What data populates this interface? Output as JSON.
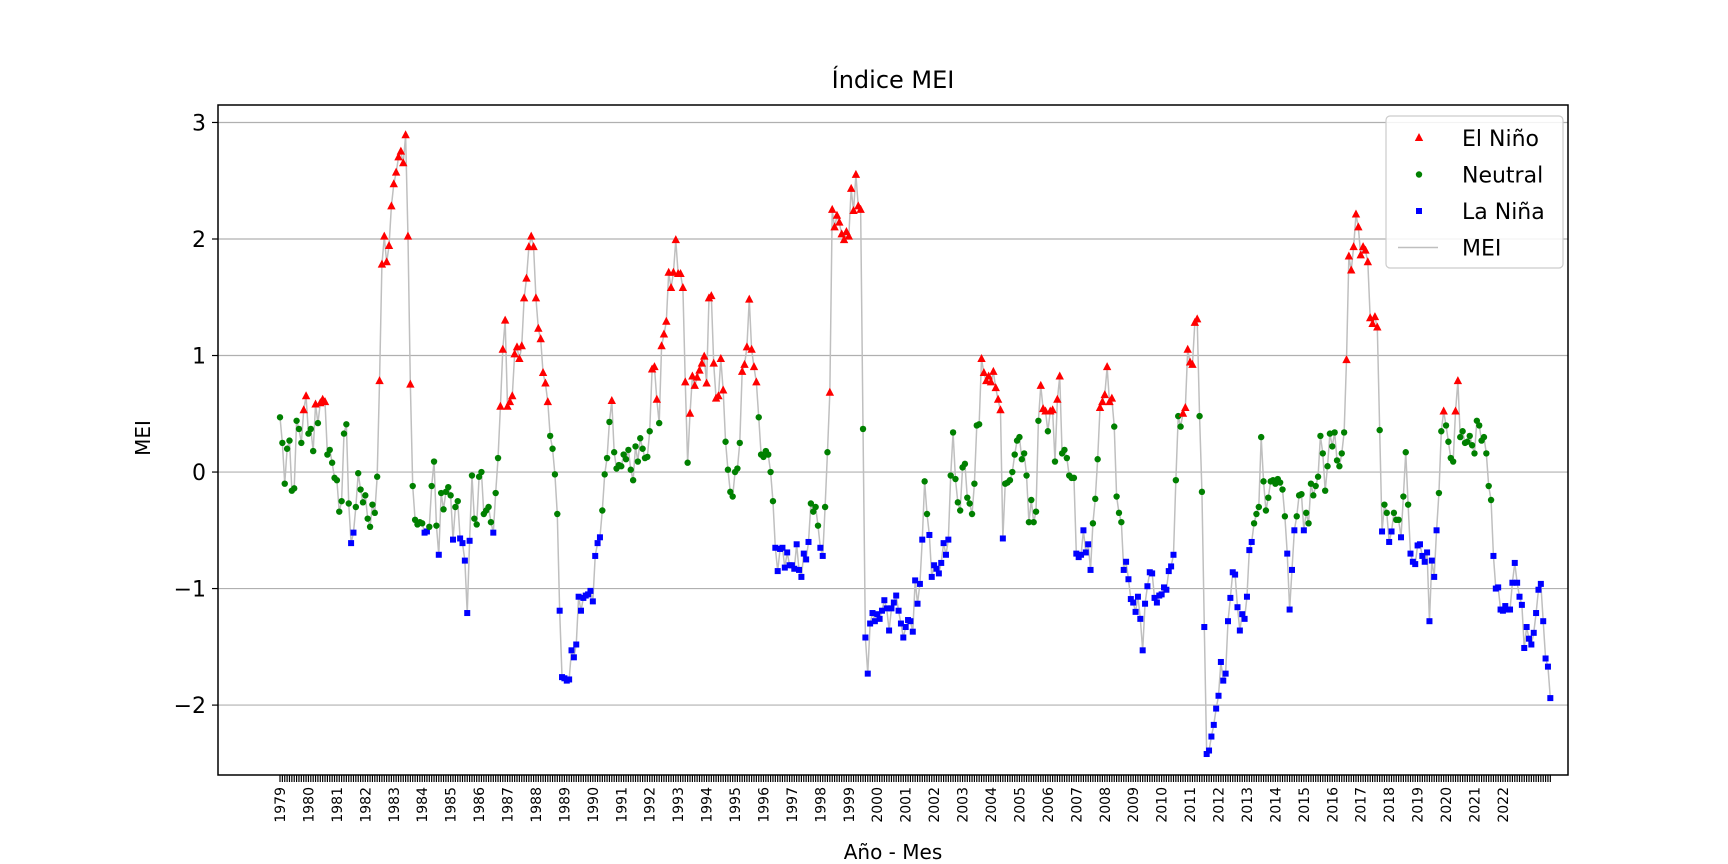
{
  "chart_data": {
    "type": "scatter",
    "title": "Índice MEI",
    "xlabel": "Año - Mes",
    "ylabel": "MEI",
    "ylim": [
      -2.6,
      3.15
    ],
    "yticks": [
      3,
      2,
      1,
      0,
      -1,
      -2
    ],
    "ytick_labels": [
      "3",
      "2",
      "1",
      "0",
      "−1",
      "−2"
    ],
    "x_years": [
      "1979",
      "1980",
      "1981",
      "1982",
      "1983",
      "1984",
      "1985",
      "1986",
      "1987",
      "1988",
      "1989",
      "1990",
      "1991",
      "1992",
      "1993",
      "1994",
      "1995",
      "1996",
      "1997",
      "1998",
      "1999",
      "2000",
      "2001",
      "2002",
      "2003",
      "2004",
      "2005",
      "2006",
      "2007",
      "2008",
      "2009",
      "2010",
      "2011",
      "2012",
      "2013",
      "2014",
      "2015",
      "2016",
      "2017",
      "2018",
      "2019",
      "2020",
      "2021",
      "2022"
    ],
    "grid": "horizontal",
    "legend_position": "top-right",
    "colors": {
      "el_nino": "#ff0000",
      "neutral": "#008000",
      "la_nina": "#0000ff",
      "line": "#bfbfbf",
      "grid": "#b0b0b0"
    },
    "series": [
      {
        "name": "El Niño",
        "marker": "triangle",
        "color": "#ff0000"
      },
      {
        "name": "Neutral",
        "marker": "circle",
        "color": "#008000"
      },
      {
        "name": "La Niña",
        "marker": "square",
        "color": "#0000ff"
      },
      {
        "name": "MEI",
        "marker": "line",
        "color": "#bfbfbf"
      }
    ],
    "start": "1979-01",
    "monthly_values": [
      0.47,
      0.25,
      -0.1,
      0.2,
      0.27,
      -0.16,
      -0.14,
      0.44,
      0.37,
      0.25,
      0.53,
      0.65,
      0.33,
      0.37,
      0.18,
      0.58,
      0.42,
      0.59,
      0.62,
      0.6,
      0.15,
      0.19,
      0.08,
      -0.05,
      -0.07,
      -0.34,
      -0.25,
      0.33,
      0.41,
      -0.27,
      -0.61,
      -0.52,
      -0.3,
      -0.01,
      -0.15,
      -0.26,
      -0.2,
      -0.4,
      -0.47,
      -0.28,
      -0.35,
      -0.04,
      0.78,
      1.78,
      2.02,
      1.8,
      1.94,
      2.28,
      2.47,
      2.57,
      2.7,
      2.75,
      2.65,
      2.89,
      2.02,
      0.75,
      -0.12,
      -0.41,
      -0.45,
      -0.43,
      -0.44,
      -0.52,
      -0.51,
      -0.47,
      -0.12,
      0.09,
      -0.46,
      -0.71,
      -0.18,
      -0.32,
      -0.17,
      -0.13,
      -0.2,
      -0.58,
      -0.3,
      -0.25,
      -0.57,
      -0.61,
      -0.76,
      -1.21,
      -0.59,
      -0.03,
      -0.4,
      -0.45,
      -0.04,
      0.0,
      -0.36,
      -0.33,
      -0.3,
      -0.43,
      -0.52,
      -0.18,
      0.12,
      0.56,
      1.05,
      1.3,
      0.56,
      0.6,
      0.65,
      1.01,
      1.07,
      0.97,
      1.08,
      1.49,
      1.66,
      1.93,
      2.02,
      1.93,
      1.49,
      1.23,
      1.14,
      0.85,
      0.76,
      0.6,
      0.31,
      0.2,
      -0.02,
      -0.36,
      -1.19,
      -1.76,
      -1.77,
      -1.79,
      -1.78,
      -1.53,
      -1.59,
      -1.48,
      -1.07,
      -1.19,
      -1.08,
      -1.06,
      -1.05,
      -1.02,
      -1.11,
      -0.72,
      -0.61,
      -0.56,
      -0.33,
      -0.02,
      0.12,
      0.43,
      0.61,
      0.17,
      0.03,
      0.06,
      0.05,
      0.15,
      0.11,
      0.19,
      0.02,
      -0.07,
      0.22,
      0.09,
      0.29,
      0.2,
      0.12,
      0.13,
      0.35,
      0.88,
      0.9,
      0.62,
      0.42,
      1.08,
      1.18,
      1.29,
      1.71,
      1.58,
      1.71,
      1.99,
      1.7,
      1.7,
      1.58,
      0.77,
      0.08,
      0.5,
      0.82,
      0.74,
      0.81,
      0.87,
      0.93,
      0.99,
      0.76,
      1.49,
      1.51,
      0.93,
      0.63,
      0.65,
      0.97,
      0.7,
      0.26,
      0.02,
      -0.17,
      -0.21,
      0.0,
      0.03,
      0.25,
      0.86,
      0.92,
      1.07,
      1.48,
      1.05,
      0.9,
      0.77,
      0.47,
      0.15,
      0.13,
      0.18,
      0.15,
      0.0,
      -0.25,
      -0.65,
      -0.85,
      -0.66,
      -0.65,
      -0.82,
      -0.69,
      -0.8,
      -0.8,
      -0.83,
      -0.62,
      -0.84,
      -0.9,
      -0.7,
      -0.75,
      -0.6,
      -0.27,
      -0.34,
      -0.3,
      -0.46,
      -0.65,
      -0.72,
      -0.3,
      0.17,
      0.68,
      2.25,
      2.1,
      2.2,
      2.14,
      2.04,
      1.99,
      2.06,
      2.02,
      2.43,
      2.24,
      2.55,
      2.28,
      2.25,
      0.37,
      -1.42,
      -1.73,
      -1.3,
      -1.21,
      -1.28,
      -1.22,
      -1.26,
      -1.19,
      -1.1,
      -1.17,
      -1.36,
      -1.17,
      -1.12,
      -1.06,
      -1.19,
      -1.3,
      -1.42,
      -1.33,
      -1.27,
      -1.28,
      -1.37,
      -0.93,
      -1.13,
      -0.96,
      -0.58,
      -0.08,
      -0.36,
      -0.54,
      -0.9,
      -0.8,
      -0.83,
      -0.87,
      -0.78,
      -0.61,
      -0.71,
      -0.58,
      -0.03,
      0.34,
      -0.06,
      -0.26,
      -0.33,
      0.04,
      0.07,
      -0.22,
      -0.27,
      -0.36,
      -0.1,
      0.4,
      0.41,
      0.97,
      0.85,
      0.78,
      0.82,
      0.77,
      0.86,
      0.72,
      0.62,
      0.53,
      -0.57,
      -0.1,
      -0.09,
      -0.07,
      0.0,
      0.15,
      0.27,
      0.3,
      0.11,
      0.16,
      -0.03,
      -0.43,
      -0.24,
      -0.43,
      -0.34,
      0.44,
      0.74,
      0.54,
      0.52,
      0.35,
      0.52,
      0.53,
      0.09,
      0.62,
      0.82,
      0.16,
      0.19,
      0.12,
      -0.03,
      -0.05,
      -0.05,
      -0.7,
      -0.73,
      -0.71,
      -0.5,
      -0.69,
      -0.62,
      -0.84,
      -0.44,
      -0.23,
      0.11,
      0.55,
      0.6,
      0.66,
      0.9,
      0.6,
      0.63,
      0.39,
      -0.21,
      -0.35,
      -0.43,
      -0.84,
      -0.77,
      -0.92,
      -1.09,
      -1.12,
      -1.2,
      -1.07,
      -1.26,
      -1.53,
      -1.13,
      -0.98,
      -0.86,
      -0.87,
      -1.08,
      -1.12,
      -1.06,
      -1.05,
      -0.99,
      -1.01,
      -0.85,
      -0.81,
      -0.71,
      -0.07,
      0.48,
      0.39,
      0.5,
      0.55,
      1.05,
      0.94,
      0.92,
      1.28,
      1.31,
      0.48,
      -0.17,
      -1.33,
      -2.42,
      -2.39,
      -2.27,
      -2.17,
      -2.03,
      -1.92,
      -1.63,
      -1.79,
      -1.73,
      -1.28,
      -1.08,
      -0.86,
      -0.88,
      -1.16,
      -1.36,
      -1.22,
      -1.26,
      -1.07,
      -0.67,
      -0.6,
      -0.44,
      -0.36,
      -0.3,
      0.3,
      -0.08,
      -0.33,
      -0.22,
      -0.08,
      -0.07,
      -0.1,
      -0.06,
      -0.09,
      -0.15,
      -0.38,
      -0.7,
      -1.18,
      -0.84,
      -0.5,
      -0.38,
      -0.2,
      -0.19,
      -0.5,
      -0.35,
      -0.44,
      -0.1,
      -0.2,
      -0.12,
      -0.04,
      0.31,
      0.16,
      -0.16,
      0.05,
      0.33,
      0.22,
      0.34,
      0.1,
      0.05,
      0.16,
      0.34,
      0.96,
      1.85,
      1.73,
      1.93,
      2.21,
      2.1,
      1.86,
      1.93,
      1.9,
      1.8,
      1.32,
      1.27,
      1.33,
      1.24,
      0.36,
      -0.51,
      -0.28,
      -0.35,
      -0.6,
      -0.51,
      -0.35,
      -0.41,
      -0.41,
      -0.56,
      -0.21,
      0.17,
      -0.28,
      -0.7,
      -0.77,
      -0.79,
      -0.63,
      -0.62,
      -0.72,
      -0.77,
      -0.69,
      -1.28,
      -0.76,
      -0.9,
      -0.5,
      -0.18,
      0.35,
      0.52,
      0.4,
      0.26,
      0.12,
      0.09,
      0.52,
      0.78,
      0.3,
      0.35,
      0.25,
      0.26,
      0.31,
      0.23,
      0.16,
      0.44,
      0.4,
      0.27,
      0.3,
      0.16,
      -0.12,
      -0.24,
      -0.72,
      -1.0,
      -0.99,
      -1.18,
      -1.19,
      -1.15,
      -1.18,
      -1.18,
      -0.95,
      -0.78,
      -0.95,
      -1.07,
      -1.14,
      -1.51,
      -1.33,
      -1.43,
      -1.48,
      -1.38,
      -1.21,
      -1.01,
      -0.96,
      -1.28,
      -1.6,
      -1.67,
      -1.94
    ]
  }
}
